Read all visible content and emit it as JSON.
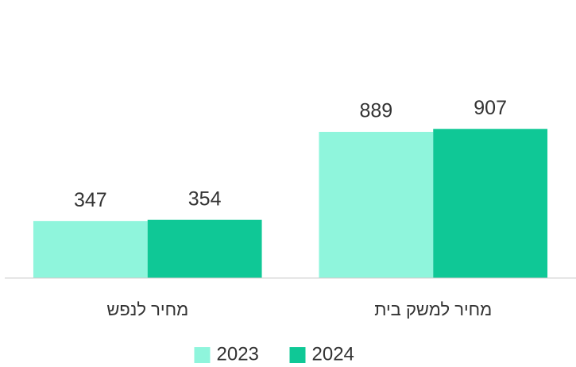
{
  "chart_data": {
    "type": "bar",
    "categories": [
      "מחיר לנפש",
      "מחיר למשק בית"
    ],
    "series": [
      {
        "name": "2023",
        "color": "#8ff5dc",
        "values": [
          347,
          889
        ]
      },
      {
        "name": "2024",
        "color": "#0fc896",
        "values": [
          354,
          907
        ]
      }
    ],
    "ylim": [
      0,
      1000
    ]
  }
}
